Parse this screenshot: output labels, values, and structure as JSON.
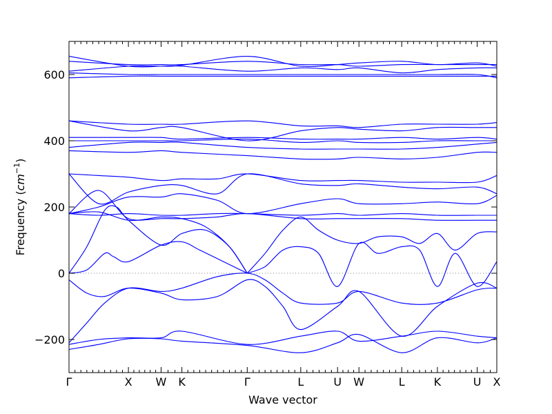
{
  "chart_data": {
    "type": "line",
    "title": "",
    "xlabel": "Wave vector",
    "ylabel": "Frequency (cm⁻¹)",
    "ylabel_main": "Frequency (",
    "ylabel_unit": "cm",
    "ylabel_exp": "−1",
    "ylabel_close": ")",
    "ylim": [
      -300,
      700
    ],
    "yticks": [
      -200,
      0,
      200,
      400,
      600
    ],
    "ytick_labels": [
      "−200",
      "0",
      "200",
      "400",
      "600"
    ],
    "zero_line": true,
    "xlim": [
      0,
      7.2
    ],
    "special_points": [
      {
        "label": "Γ",
        "x": 0
      },
      {
        "label": "X",
        "x": 1.0
      },
      {
        "label": "W",
        "x": 1.55
      },
      {
        "label": "K",
        "x": 1.9
      },
      {
        "label": "Γ",
        "x": 3.0
      },
      {
        "label": "L",
        "x": 3.9
      },
      {
        "label": "U",
        "x": 4.52
      },
      {
        "label": "W",
        "x": 4.88
      },
      {
        "label": "L",
        "x": 5.6
      },
      {
        "label": "K",
        "x": 6.2
      },
      {
        "label": "U",
        "x": 6.87
      },
      {
        "label": "X",
        "x": 7.2
      }
    ],
    "series": [
      {
        "x": [
          0,
          0.5,
          1.0,
          1.55,
          1.9,
          3.0,
          3.9,
          4.52,
          4.88,
          5.6,
          6.2,
          6.87,
          7.2
        ],
        "values": [
          -215,
          -200,
          -195,
          -195,
          -175,
          -215,
          -190,
          -175,
          -205,
          -190,
          -175,
          -190,
          -195
        ]
      },
      {
        "x": [
          0,
          0.5,
          1.0,
          1.55,
          1.9,
          3.0,
          3.9,
          4.52,
          4.88,
          5.6,
          6.2,
          6.87,
          7.2
        ],
        "values": [
          -230,
          -215,
          -198,
          -198,
          -205,
          -218,
          -240,
          -210,
          -185,
          -240,
          -195,
          -210,
          -195
        ]
      },
      {
        "x": [
          0,
          0.3,
          0.6,
          1.0,
          1.55,
          1.9,
          2.5,
          3.0,
          3.3,
          3.6,
          3.9,
          4.52,
          4.88,
          5.6,
          6.2,
          6.87,
          7.2
        ],
        "values": [
          -210,
          -150,
          -90,
          -45,
          -55,
          -45,
          -10,
          0,
          -20,
          -60,
          -90,
          -90,
          -55,
          -90,
          -90,
          -50,
          -45
        ]
      },
      {
        "x": [
          0,
          0.3,
          0.6,
          1.0,
          1.55,
          1.9,
          2.5,
          3.0,
          3.3,
          3.6,
          3.9,
          4.52,
          4.88,
          5.6,
          6.2,
          6.87,
          7.2
        ],
        "values": [
          -20,
          -60,
          -70,
          -45,
          -60,
          -80,
          -70,
          -20,
          -40,
          -100,
          -170,
          -100,
          -55,
          -190,
          -100,
          -30,
          -45
        ]
      },
      {
        "x": [
          0,
          0.3,
          0.6,
          0.75,
          1.0,
          1.55,
          1.9,
          2.2,
          2.6,
          3.0
        ],
        "values": [
          0,
          10,
          60,
          50,
          35,
          85,
          95,
          70,
          35,
          0
        ]
      },
      {
        "x": [
          0,
          0.3,
          0.6,
          0.8,
          1.0,
          1.55,
          1.9,
          2.3,
          2.7,
          3.0
        ],
        "values": [
          0,
          80,
          190,
          200,
          160,
          85,
          120,
          130,
          80,
          0
        ]
      },
      {
        "x": [
          3.0,
          3.3,
          3.6,
          3.9,
          4.2,
          4.52,
          4.88,
          5.2,
          5.6,
          5.9,
          6.2,
          6.5,
          6.87,
          7.2
        ],
        "values": [
          0,
          20,
          70,
          80,
          60,
          -40,
          90,
          60,
          80,
          70,
          -40,
          60,
          -40,
          35
        ]
      },
      {
        "x": [
          3.0,
          3.3,
          3.6,
          3.9,
          4.2,
          4.52,
          4.88,
          5.2,
          5.6,
          5.9,
          6.2,
          6.5,
          6.87,
          7.2
        ],
        "values": [
          0,
          60,
          130,
          170,
          130,
          100,
          90,
          110,
          110,
          90,
          120,
          70,
          120,
          125
        ]
      },
      {
        "x": [
          0,
          0.5,
          1.0,
          1.55,
          1.9,
          2.3,
          2.7,
          3.0
        ],
        "values": [
          180,
          250,
          165,
          170,
          165,
          140,
          80,
          0
        ]
      },
      {
        "x": [
          0,
          0.5,
          1.0,
          1.55,
          1.9,
          2.5,
          3.0,
          3.9,
          4.52,
          4.88,
          5.6,
          6.2,
          6.87,
          7.2
        ],
        "values": [
          180,
          185,
          160,
          165,
          165,
          170,
          180,
          165,
          165,
          165,
          165,
          160,
          160,
          160
        ]
      },
      {
        "x": [
          0,
          0.5,
          1.0,
          1.55,
          1.9,
          2.5,
          3.0,
          3.9,
          4.52,
          4.88,
          5.6,
          6.2,
          6.87,
          7.2
        ],
        "values": [
          180,
          175,
          180,
          175,
          175,
          180,
          180,
          175,
          180,
          175,
          180,
          175,
          175,
          175
        ]
      },
      {
        "x": [
          0,
          0.5,
          1.0,
          1.55,
          1.9,
          2.5,
          3.0,
          3.9,
          4.52,
          4.88,
          5.6,
          6.2,
          6.87,
          7.2
        ],
        "values": [
          180,
          200,
          230,
          230,
          240,
          220,
          180,
          210,
          225,
          210,
          210,
          215,
          210,
          235
        ]
      },
      {
        "x": [
          0,
          0.5,
          1.0,
          1.55,
          1.9,
          2.5,
          3.0,
          3.9,
          4.52,
          4.88,
          5.6,
          6.2,
          6.87,
          7.2
        ],
        "values": [
          300,
          210,
          245,
          265,
          265,
          240,
          300,
          270,
          265,
          270,
          260,
          255,
          260,
          240
        ]
      },
      {
        "x": [
          0,
          0.5,
          1.0,
          1.55,
          1.9,
          2.5,
          3.0,
          3.9,
          4.52,
          4.88,
          5.6,
          6.2,
          6.87,
          7.2
        ],
        "values": [
          300,
          295,
          290,
          280,
          285,
          285,
          300,
          280,
          280,
          280,
          275,
          275,
          275,
          295
        ]
      },
      {
        "x": [
          0,
          1.0,
          1.55,
          1.9,
          3.0,
          3.9,
          4.52,
          4.88,
          5.6,
          6.2,
          6.87,
          7.2
        ],
        "values": [
          370,
          365,
          370,
          365,
          355,
          345,
          345,
          350,
          345,
          350,
          365,
          365
        ]
      },
      {
        "x": [
          0,
          1.0,
          1.55,
          1.9,
          3.0,
          3.9,
          4.52,
          4.88,
          5.6,
          6.2,
          6.87,
          7.2
        ],
        "values": [
          380,
          395,
          395,
          395,
          380,
          375,
          375,
          375,
          375,
          380,
          390,
          395
        ]
      },
      {
        "x": [
          0,
          1.0,
          1.55,
          1.9,
          3.0,
          3.9,
          4.52,
          4.88,
          5.6,
          6.2,
          6.87,
          7.2
        ],
        "values": [
          400,
          400,
          400,
          400,
          405,
          395,
          400,
          395,
          395,
          400,
          400,
          400
        ]
      },
      {
        "x": [
          0,
          1.0,
          1.55,
          1.9,
          3.0,
          3.9,
          4.52,
          4.88,
          5.6,
          6.2,
          6.87,
          7.2
        ],
        "values": [
          410,
          410,
          410,
          405,
          410,
          405,
          405,
          405,
          410,
          405,
          410,
          405
        ]
      },
      {
        "x": [
          0,
          1.0,
          1.55,
          1.9,
          3.0,
          3.9,
          4.52,
          4.88,
          5.6,
          6.2,
          6.87,
          7.2
        ],
        "values": [
          460,
          430,
          440,
          440,
          400,
          430,
          440,
          435,
          430,
          440,
          440,
          440
        ]
      },
      {
        "x": [
          0,
          1.0,
          1.55,
          1.9,
          3.0,
          3.9,
          4.52,
          4.88,
          5.6,
          6.2,
          6.87,
          7.2
        ],
        "values": [
          460,
          450,
          450,
          450,
          460,
          445,
          445,
          440,
          450,
          450,
          450,
          455
        ]
      },
      {
        "x": [
          0,
          1.0,
          1.55,
          1.9,
          3.0,
          3.9,
          4.52,
          4.88,
          5.6,
          6.2,
          6.87,
          7.2
        ],
        "values": [
          590,
          595,
          595,
          595,
          595,
          595,
          595,
          595,
          595,
          595,
          595,
          595
        ]
      },
      {
        "x": [
          0,
          1.0,
          1.55,
          1.9,
          3.0,
          3.9,
          4.52,
          4.88,
          5.6,
          6.2,
          6.87,
          7.2
        ],
        "values": [
          605,
          600,
          600,
          600,
          600,
          600,
          600,
          600,
          600,
          600,
          600,
          590
        ]
      },
      {
        "x": [
          0,
          1.0,
          1.55,
          1.9,
          3.0,
          3.9,
          4.52,
          4.88,
          5.6,
          6.2,
          6.87,
          7.2
        ],
        "values": [
          610,
          625,
          625,
          625,
          610,
          620,
          615,
          620,
          605,
          615,
          620,
          620
        ]
      },
      {
        "x": [
          0,
          1.0,
          1.55,
          1.9,
          3.0,
          3.9,
          4.52,
          4.88,
          5.6,
          6.2,
          6.87,
          7.2
        ],
        "values": [
          640,
          630,
          630,
          630,
          640,
          630,
          630,
          625,
          630,
          630,
          630,
          630
        ]
      },
      {
        "x": [
          0,
          1.0,
          1.55,
          1.9,
          3.0,
          3.9,
          4.52,
          4.88,
          5.6,
          6.2,
          6.87,
          7.2
        ],
        "values": [
          655,
          625,
          625,
          628,
          655,
          625,
          630,
          635,
          640,
          630,
          635,
          625
        ]
      }
    ]
  }
}
